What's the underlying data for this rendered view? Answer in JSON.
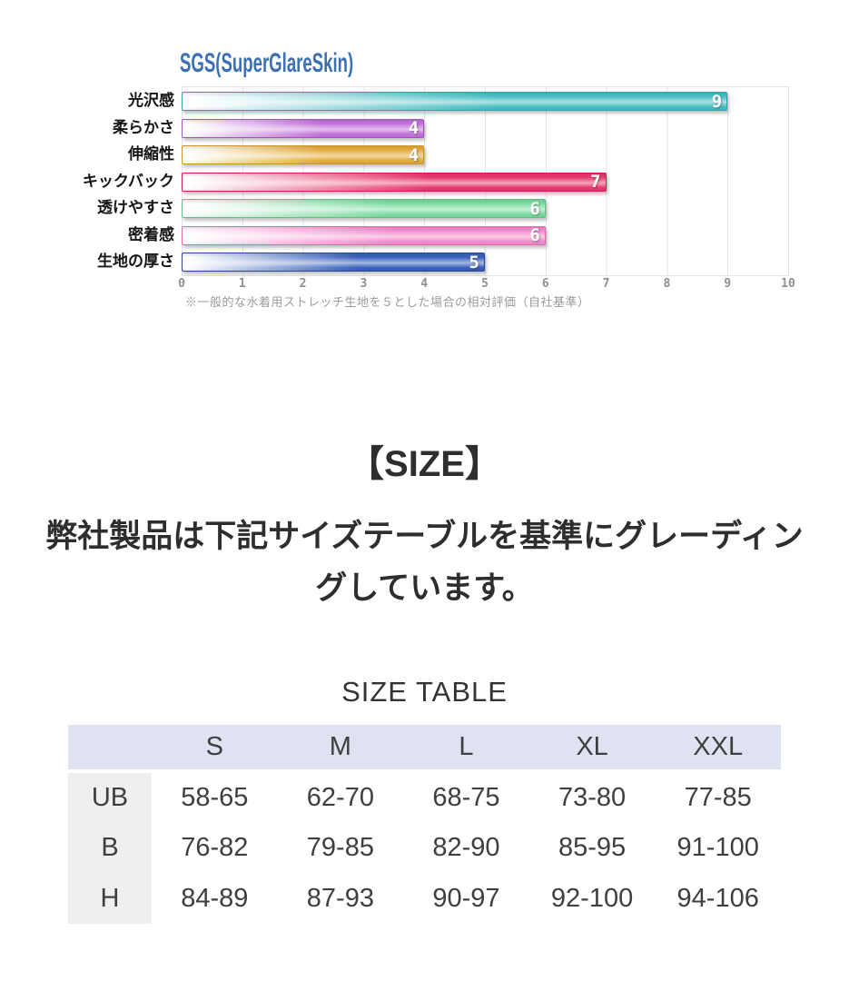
{
  "page": {
    "background": "#ffffff"
  },
  "chart_data": [
    {
      "type": "bar",
      "orientation": "horizontal",
      "title": "SGS(SuperGlareSkin)",
      "title_color": "#3c70b4",
      "categories": [
        "光沢感",
        "柔らかさ",
        "伸縮性",
        "キックバック",
        "透けやすさ",
        "密着感",
        "生地の厚さ"
      ],
      "values": [
        9,
        4,
        4,
        7,
        6,
        6,
        5
      ],
      "bar_colors": [
        "#49bec4",
        "#c273da",
        "#e4ac3f",
        "#e8396e",
        "#7edca2",
        "#f18fce",
        "#3a62bc"
      ],
      "bar_border_colors": [
        "#2fa6ad",
        "#a94fc6",
        "#ce9526",
        "#cf1d55",
        "#56c584",
        "#e268b4",
        "#27479c"
      ],
      "value_label_color": "#ffffff",
      "xlim": [
        0,
        10
      ],
      "x_ticks": [
        "0",
        "1",
        "2",
        "3",
        "4",
        "5",
        "6",
        "7",
        "8",
        "9",
        "10"
      ],
      "grid": true,
      "legend": false,
      "note": "※一般的な水着用ストレッチ生地を５とした場合の相対評価（自社基準）"
    },
    {
      "type": "table",
      "title": "SIZE TABLE",
      "columns": [
        "",
        "S",
        "M",
        "L",
        "XL",
        "XXL"
      ],
      "rows": [
        {
          "label": "UB",
          "values": [
            "58-65",
            "62-70",
            "68-75",
            "73-80",
            "77-85"
          ]
        },
        {
          "label": "B",
          "values": [
            "76-82",
            "79-85",
            "82-90",
            "85-95",
            "91-100"
          ]
        },
        {
          "label": "H",
          "values": [
            "84-89",
            "87-93",
            "90-97",
            "92-100",
            "94-106"
          ]
        }
      ],
      "header_bg": "#dfe3f1",
      "row_label_bg": "#efefef"
    }
  ],
  "size_section": {
    "heading": "【SIZE】",
    "description": "弊社製品は下記サイズテーブルを基準にグレーディングしています。"
  }
}
